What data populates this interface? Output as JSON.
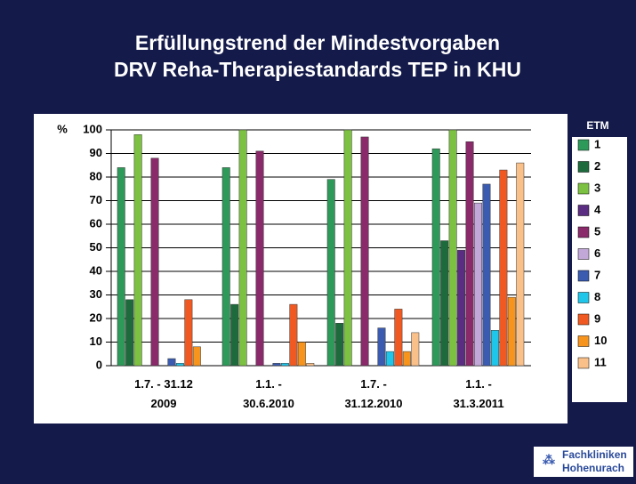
{
  "chart_data": {
    "type": "bar",
    "title": [
      "Erfüllungstrend der Mindestvorgaben",
      "DRV Reha-Therapiestandards TEP in KHU"
    ],
    "y_label": "%",
    "legend_title": "ETM",
    "categories": [
      "1.7. - 31.12\n2009",
      "1.1. -\n30.6.2010",
      "1.7. -\n31.12.2010",
      "1.1. -\n31.3.2011"
    ],
    "series": [
      {
        "name": "1",
        "color": "#2e9a5a",
        "values": [
          84,
          84,
          79,
          92
        ]
      },
      {
        "name": "2",
        "color": "#1d6b3c",
        "values": [
          28,
          26,
          18,
          53
        ]
      },
      {
        "name": "3",
        "color": "#7cc142",
        "values": [
          98,
          100,
          100,
          100
        ]
      },
      {
        "name": "4",
        "color": "#5a2d82",
        "values": [
          0,
          0,
          0,
          49
        ]
      },
      {
        "name": "5",
        "color": "#8a2a6a",
        "values": [
          88,
          91,
          97,
          95
        ]
      },
      {
        "name": "6",
        "color": "#c2a8d8",
        "values": [
          0,
          0,
          0,
          69
        ]
      },
      {
        "name": "7",
        "color": "#3a5bb0",
        "values": [
          3,
          1,
          16,
          77
        ]
      },
      {
        "name": "8",
        "color": "#1fc6ea",
        "values": [
          1,
          1,
          6,
          15
        ]
      },
      {
        "name": "9",
        "color": "#f05a22",
        "values": [
          28,
          26,
          24,
          83
        ]
      },
      {
        "name": "10",
        "color": "#f7941d",
        "values": [
          8,
          10,
          6,
          29
        ]
      },
      {
        "name": "11",
        "color": "#f9c08a",
        "values": [
          0,
          1,
          14,
          86
        ]
      }
    ],
    "ylim": [
      0,
      100
    ],
    "yticks": [
      0,
      10,
      20,
      30,
      40,
      50,
      60,
      70,
      80,
      90,
      100
    ],
    "grid": true,
    "logo": [
      "Fachkliniken",
      "Hohenurach"
    ]
  }
}
